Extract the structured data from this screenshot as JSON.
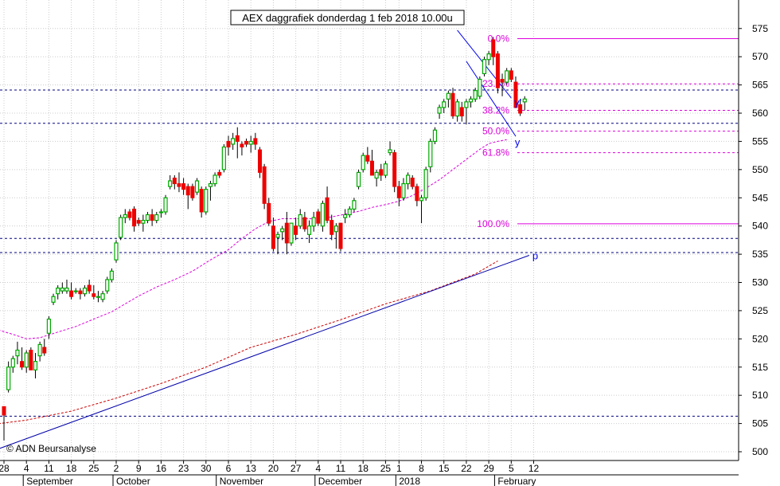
{
  "title": "AEX daggrafiek donderdag 1 feb 2018 10.00u",
  "copyright": "© ADN Beursanalyse",
  "colors": {
    "up_candle": "#00aa00",
    "down_candle": "#ee0000",
    "fib": "#dd00dd",
    "ma_short": "#dd00dd",
    "ma_long": "#cc0000",
    "trend": "#0000aa",
    "channel": "#0000ee",
    "support": "#000080",
    "grid": "#888888"
  },
  "chart_data": {
    "type": "candlestick",
    "ylim": [
      500,
      576
    ],
    "y_ticks": [
      "500",
      "505",
      "510",
      "515",
      "520",
      "525",
      "530",
      "535",
      "540",
      "545",
      "550",
      "555",
      "560",
      "565",
      "570",
      "575"
    ],
    "x_ticks": [
      {
        "label": "28",
        "i": 0
      },
      {
        "label": "4",
        "i": 5
      },
      {
        "label": "11",
        "i": 10
      },
      {
        "label": "18",
        "i": 15
      },
      {
        "label": "25",
        "i": 20
      },
      {
        "label": "2",
        "i": 25
      },
      {
        "label": "9",
        "i": 30
      },
      {
        "label": "16",
        "i": 35
      },
      {
        "label": "23",
        "i": 40
      },
      {
        "label": "30",
        "i": 45
      },
      {
        "label": "6",
        "i": 50
      },
      {
        "label": "13",
        "i": 55
      },
      {
        "label": "20",
        "i": 60
      },
      {
        "label": "27",
        "i": 65
      },
      {
        "label": "4",
        "i": 70
      },
      {
        "label": "11",
        "i": 75
      },
      {
        "label": "18",
        "i": 80
      },
      {
        "label": "25",
        "i": 85
      },
      {
        "label": "1",
        "i": 88
      },
      {
        "label": "8",
        "i": 93
      },
      {
        "label": "15",
        "i": 98
      },
      {
        "label": "22",
        "i": 103
      },
      {
        "label": "29",
        "i": 108
      },
      {
        "label": "5",
        "i": 113
      },
      {
        "label": "12",
        "i": 118
      }
    ],
    "months": [
      {
        "label": "September",
        "i": 5
      },
      {
        "label": "October",
        "i": 25
      },
      {
        "label": "November",
        "i": 48
      },
      {
        "label": "December",
        "i": 70
      },
      {
        "label": "2018",
        "i": 88
      },
      {
        "label": "February",
        "i": 110
      }
    ],
    "candles": [
      [
        508.0,
        508.0,
        502.0,
        506.5
      ],
      [
        511.0,
        516.0,
        510.5,
        515.0
      ],
      [
        515.0,
        517.0,
        514.0,
        516.5
      ],
      [
        517.0,
        519.5,
        515.5,
        518.0
      ],
      [
        516.0,
        518.5,
        514.5,
        515.0
      ],
      [
        515.0,
        518.0,
        514.0,
        517.5
      ],
      [
        518.0,
        518.5,
        514.5,
        514.5
      ],
      [
        514.5,
        517.5,
        513.0,
        516.0
      ],
      [
        517.0,
        519.5,
        516.0,
        519.0
      ],
      [
        518.5,
        520.0,
        517.0,
        517.5
      ],
      [
        521.0,
        524.0,
        520.0,
        523.5
      ],
      [
        526.5,
        528.0,
        526.0,
        527.5
      ],
      [
        528.0,
        529.5,
        527.0,
        529.0
      ],
      [
        528.5,
        530.0,
        528.0,
        529.0
      ],
      [
        528.5,
        530.5,
        528.0,
        529.0
      ],
      [
        528.5,
        530.0,
        527.0,
        527.5
      ],
      [
        528.5,
        529.0,
        528.0,
        528.5
      ],
      [
        528.5,
        529.0,
        527.0,
        528.0
      ],
      [
        528.0,
        529.5,
        527.5,
        529.0
      ],
      [
        529.5,
        530.5,
        528.0,
        528.5
      ],
      [
        528.0,
        529.5,
        527.0,
        527.5
      ],
      [
        527.5,
        528.5,
        526.5,
        527.5
      ],
      [
        527.0,
        528.5,
        526.5,
        528.0
      ],
      [
        528.5,
        531.0,
        528.0,
        530.5
      ],
      [
        530.5,
        532.5,
        530.0,
        532.0
      ],
      [
        534.0,
        537.5,
        533.5,
        537.0
      ],
      [
        538.0,
        542.0,
        537.5,
        541.5
      ],
      [
        541.5,
        543.0,
        540.5,
        542.0
      ],
      [
        542.5,
        543.0,
        541.0,
        541.5
      ],
      [
        543.0,
        543.5,
        539.0,
        540.0
      ],
      [
        541.0,
        541.5,
        540.0,
        540.5
      ],
      [
        540.5,
        542.0,
        539.0,
        541.0
      ],
      [
        541.0,
        542.5,
        540.5,
        542.0
      ],
      [
        542.0,
        543.0,
        540.0,
        541.0
      ],
      [
        541.0,
        542.5,
        540.5,
        542.0
      ],
      [
        542.5,
        543.0,
        541.5,
        542.5
      ],
      [
        542.5,
        545.5,
        542.0,
        545.0
      ],
      [
        547.0,
        549.0,
        546.5,
        548.0
      ],
      [
        548.5,
        549.0,
        546.5,
        547.5
      ],
      [
        547.5,
        549.5,
        546.0,
        547.0
      ],
      [
        547.5,
        548.5,
        545.5,
        546.5
      ],
      [
        547.0,
        547.5,
        543.0,
        545.5
      ],
      [
        547.0,
        547.5,
        544.5,
        545.0
      ],
      [
        546.0,
        548.5,
        545.5,
        548.0
      ],
      [
        546.5,
        547.0,
        541.5,
        542.5
      ],
      [
        542.5,
        547.0,
        542.0,
        546.5
      ],
      [
        547.0,
        548.0,
        544.5,
        547.5
      ],
      [
        547.5,
        549.5,
        547.0,
        549.0
      ],
      [
        549.5,
        550.0,
        548.5,
        549.0
      ],
      [
        550.0,
        554.5,
        549.5,
        554.0
      ],
      [
        555.0,
        556.0,
        552.5,
        554.0
      ],
      [
        554.5,
        556.5,
        553.5,
        555.5
      ],
      [
        556.0,
        557.5,
        552.0,
        555.0
      ],
      [
        554.5,
        555.0,
        552.5,
        554.0
      ],
      [
        555.0,
        555.5,
        554.0,
        554.5
      ],
      [
        554.5,
        556.0,
        553.0,
        555.0
      ],
      [
        555.5,
        556.5,
        553.5,
        554.5
      ],
      [
        553.5,
        554.0,
        548.5,
        549.5
      ],
      [
        550.5,
        551.0,
        543.0,
        544.0
      ],
      [
        544.0,
        545.0,
        540.0,
        540.5
      ],
      [
        540.0,
        541.5,
        535.5,
        536.0
      ],
      [
        538.0,
        539.0,
        535.0,
        538.5
      ],
      [
        539.0,
        540.0,
        537.5,
        539.5
      ],
      [
        540.5,
        542.5,
        535.0,
        537.0
      ],
      [
        537.0,
        540.5,
        536.5,
        540.5
      ],
      [
        540.0,
        541.5,
        537.5,
        538.5
      ],
      [
        540.0,
        543.0,
        539.5,
        542.0
      ],
      [
        541.5,
        542.5,
        539.0,
        539.5
      ],
      [
        538.5,
        541.0,
        537.0,
        540.0
      ],
      [
        540.0,
        542.5,
        539.0,
        541.5
      ],
      [
        542.5,
        543.0,
        540.0,
        540.5
      ],
      [
        540.0,
        544.5,
        539.0,
        544.0
      ],
      [
        545.0,
        547.0,
        540.5,
        541.0
      ],
      [
        541.0,
        542.0,
        537.5,
        538.5
      ],
      [
        539.0,
        540.5,
        536.0,
        540.0
      ],
      [
        540.5,
        540.5,
        535.5,
        536.0
      ],
      [
        541.5,
        543.0,
        540.5,
        542.0
      ],
      [
        542.0,
        543.5,
        541.5,
        543.0
      ],
      [
        543.0,
        545.0,
        542.5,
        544.5
      ],
      [
        547.0,
        550.0,
        546.5,
        549.5
      ],
      [
        550.0,
        553.0,
        549.5,
        552.5
      ],
      [
        552.5,
        554.0,
        551.0,
        551.5
      ],
      [
        551.5,
        553.5,
        549.0,
        549.0
      ],
      [
        548.5,
        550.0,
        547.0,
        549.5
      ],
      [
        550.0,
        551.0,
        548.0,
        549.0
      ],
      [
        549.0,
        551.5,
        548.5,
        551.0
      ],
      [
        553.0,
        555.0,
        552.5,
        553.5
      ],
      [
        553.0,
        553.5,
        546.0,
        547.0
      ],
      [
        547.0,
        548.0,
        543.5,
        545.0
      ],
      [
        545.0,
        548.5,
        544.5,
        547.5
      ],
      [
        547.5,
        549.5,
        546.5,
        549.0
      ],
      [
        548.5,
        549.0,
        546.5,
        547.0
      ],
      [
        547.0,
        547.5,
        543.5,
        544.5
      ],
      [
        544.5,
        545.5,
        540.5,
        545.0
      ],
      [
        545.0,
        550.5,
        544.5,
        550.0
      ],
      [
        550.5,
        555.5,
        549.5,
        555.0
      ],
      [
        555.0,
        557.5,
        554.5,
        557.0
      ],
      [
        560.0,
        561.5,
        559.0,
        561.0
      ],
      [
        561.0,
        562.5,
        560.0,
        562.0
      ],
      [
        562.5,
        564.0,
        561.0,
        563.5
      ],
      [
        563.5,
        564.5,
        559.0,
        559.5
      ],
      [
        559.5,
        562.5,
        558.5,
        562.0
      ],
      [
        561.0,
        562.0,
        558.5,
        559.5
      ],
      [
        561.0,
        562.5,
        558.0,
        562.0
      ],
      [
        562.0,
        563.0,
        561.0,
        562.5
      ],
      [
        562.5,
        564.5,
        562.0,
        564.0
      ],
      [
        563.0,
        566.5,
        562.5,
        566.0
      ],
      [
        567.0,
        570.0,
        566.5,
        569.5
      ],
      [
        569.5,
        571.0,
        568.5,
        570.5
      ],
      [
        573.0,
        573.5,
        568.5,
        570.0
      ],
      [
        570.5,
        571.0,
        563.5,
        564.5
      ],
      [
        566.0,
        567.0,
        563.0,
        565.5
      ],
      [
        565.5,
        568.0,
        565.0,
        567.5
      ],
      [
        567.5,
        568.0,
        565.5,
        566.0
      ],
      [
        565.5,
        566.5,
        561.0,
        561.0
      ],
      [
        561.5,
        562.5,
        559.5,
        560.0
      ],
      [
        562.0,
        563.0,
        560.5,
        562.5
      ]
    ],
    "fibonacci": [
      {
        "label": "0.0%",
        "value": 573.2
      },
      {
        "label": "23.6%",
        "value": 565.2
      },
      {
        "label": "38.2%",
        "value": 560.5
      },
      {
        "label": "50.0%",
        "value": 556.8
      },
      {
        "label": "61.8%",
        "value": 553.0
      },
      {
        "label": "100.0%",
        "value": 540.4
      }
    ],
    "horizontal_levels": [
      564.1,
      558.2,
      537.8,
      535.3,
      506.3
    ],
    "labels": {
      "channel_upper": "y'",
      "channel_lower": "y",
      "trend": "p"
    },
    "ma_short": [
      [
        -3,
        522
      ],
      [
        2,
        520.8
      ],
      [
        5,
        520
      ],
      [
        8,
        520.2
      ],
      [
        12,
        521.2
      ],
      [
        16,
        522.2
      ],
      [
        20,
        523.5
      ],
      [
        24,
        524.8
      ],
      [
        27,
        526.2
      ],
      [
        30,
        527.6
      ],
      [
        34,
        529.2
      ],
      [
        38,
        530.5
      ],
      [
        42,
        532.0
      ],
      [
        46,
        534.0
      ],
      [
        50,
        535.8
      ],
      [
        53,
        537.8
      ],
      [
        56,
        539.5
      ],
      [
        59,
        540.8
      ],
      [
        62,
        541.3
      ],
      [
        66,
        541.3
      ],
      [
        70,
        541.3
      ],
      [
        73,
        541.6
      ],
      [
        76,
        542.1
      ],
      [
        79,
        542.6
      ],
      [
        82,
        543.3
      ],
      [
        85,
        543.8
      ],
      [
        88,
        544.4
      ],
      [
        91,
        545.4
      ],
      [
        94,
        546.7
      ],
      [
        97,
        548.2
      ],
      [
        100,
        550.0
      ],
      [
        103,
        551.8
      ],
      [
        106,
        553.6
      ],
      [
        108,
        554.6
      ],
      [
        110,
        555.0
      ],
      [
        112,
        555.3
      ]
    ],
    "ma_long": [
      [
        -3,
        504.8
      ],
      [
        5,
        505.6
      ],
      [
        15,
        507.2
      ],
      [
        25,
        509.5
      ],
      [
        35,
        512.1
      ],
      [
        45,
        515.0
      ],
      [
        55,
        518.5
      ],
      [
        65,
        520.8
      ],
      [
        75,
        523.4
      ],
      [
        85,
        526.2
      ],
      [
        95,
        528.5
      ],
      [
        105,
        531.5
      ],
      [
        110,
        533.8
      ]
    ],
    "trend_line": [
      [
        -3,
        500.0
      ],
      [
        117,
        534.8
      ]
    ],
    "channel_upper": [
      [
        101,
        574.7
      ],
      [
        113,
        562.7
      ]
    ],
    "channel_lower": [
      [
        103,
        569.2
      ],
      [
        114,
        555.9
      ]
    ]
  }
}
